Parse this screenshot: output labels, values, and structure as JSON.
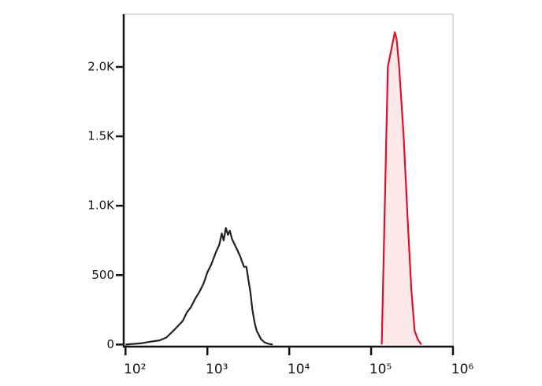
{
  "chart_data": {
    "type": "line",
    "xscale": "log",
    "xlim": [
      95,
      1000000
    ],
    "ylim": [
      -15,
      2380
    ],
    "xticks": [
      {
        "value": 100,
        "label": "10²"
      },
      {
        "value": 1000,
        "label": "10³"
      },
      {
        "value": 10000,
        "label": "10⁴"
      },
      {
        "value": 100000,
        "label": "10⁵"
      },
      {
        "value": 1000000,
        "label": "10⁶"
      }
    ],
    "yticks": [
      0,
      500,
      {
        "value": 1000,
        "label": "1.0K"
      },
      {
        "value": 1500,
        "label": "1.5K"
      },
      {
        "value": 2000,
        "label": "2.0K"
      }
    ],
    "series": [
      {
        "color": "#222222",
        "x": [
          100,
          160,
          200,
          260,
          316,
          400,
          500,
          560,
          630,
          710,
          800,
          900,
          1000,
          1120,
          1260,
          1400,
          1500,
          1580,
          1680,
          1780,
          1880,
          2000,
          2240,
          2500,
          2800,
          3000,
          3160,
          3350,
          3550,
          3800,
          4000,
          4500,
          5000,
          5600,
          6300
        ],
        "values": [
          0,
          10,
          20,
          30,
          50,
          110,
          170,
          230,
          270,
          330,
          380,
          440,
          520,
          580,
          660,
          720,
          800,
          750,
          840,
          790,
          820,
          760,
          700,
          640,
          560,
          560,
          470,
          380,
          250,
          150,
          100,
          40,
          15,
          5,
          0
        ]
      },
      {
        "color": "#e0102a",
        "fill": "#fde8ea",
        "x": [
          135000,
          160000,
          180000,
          195000,
          205000,
          220000,
          250000,
          280000,
          310000,
          340000,
          370000,
          410000
        ],
        "values": [
          0,
          2000,
          2150,
          2250,
          2200,
          2000,
          1500,
          900,
          400,
          100,
          40,
          0
        ]
      }
    ]
  }
}
